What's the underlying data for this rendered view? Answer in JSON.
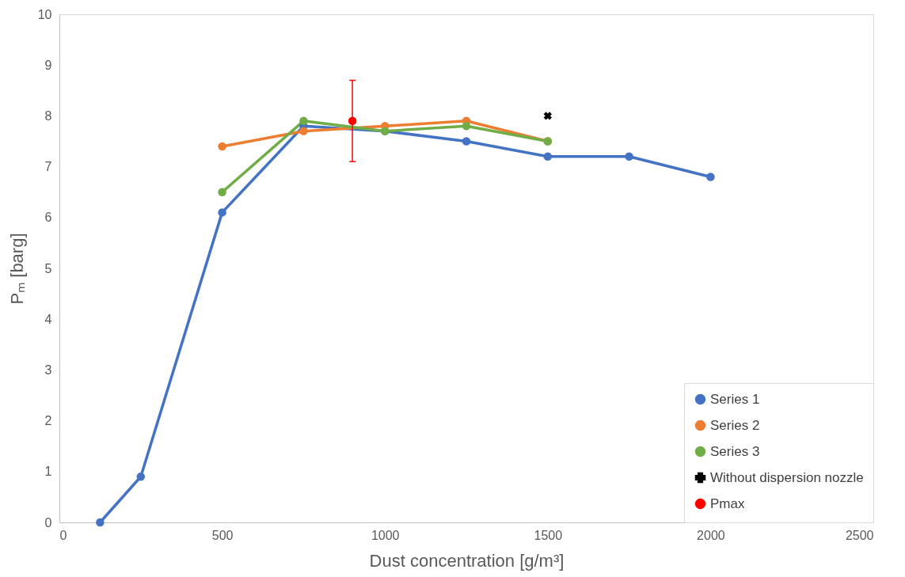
{
  "chart_data": {
    "type": "line",
    "xlabel": "Dust concentration  [g/m³]",
    "ylabel": "Pₘ [barg]",
    "xlim": [
      0,
      2500
    ],
    "xticks": [
      0,
      500,
      1000,
      1500,
      2000,
      2500
    ],
    "ylim": [
      0,
      10
    ],
    "yticks": [
      0,
      1,
      2,
      3,
      4,
      5,
      6,
      7,
      8,
      9,
      10
    ],
    "grid": false,
    "legend": "bottom right",
    "marker": "circle",
    "series": [
      {
        "name": "Series 1",
        "color": "#4472c4",
        "x": [
          125,
          250,
          500,
          750,
          1000,
          1250,
          1500,
          1750,
          2000
        ],
        "values": [
          0,
          0.9,
          6.1,
          7.8,
          7.7,
          7.5,
          7.2,
          7.2,
          6.8
        ]
      },
      {
        "name": "Series 2",
        "color": "#ed7d31",
        "x": [
          500,
          750,
          1000,
          1250,
          1500
        ],
        "values": [
          7.4,
          7.7,
          7.8,
          7.9,
          7.5
        ]
      },
      {
        "name": "Series 3",
        "color": "#70ad47",
        "x": [
          500,
          750,
          1000,
          1250,
          1500
        ],
        "values": [
          6.5,
          7.9,
          7.7,
          7.8,
          7.5
        ]
      },
      {
        "name": "Without dispersion nozzle",
        "type": "scatter",
        "marker": "cross",
        "color": "#000000",
        "x": [
          1500
        ],
        "values": [
          8.0
        ]
      },
      {
        "name": "Pmax",
        "type": "scatter",
        "marker": "circle",
        "color": "#ff0000",
        "x": [
          900
        ],
        "values": [
          7.9
        ],
        "errors": [
          0.8
        ]
      }
    ]
  }
}
